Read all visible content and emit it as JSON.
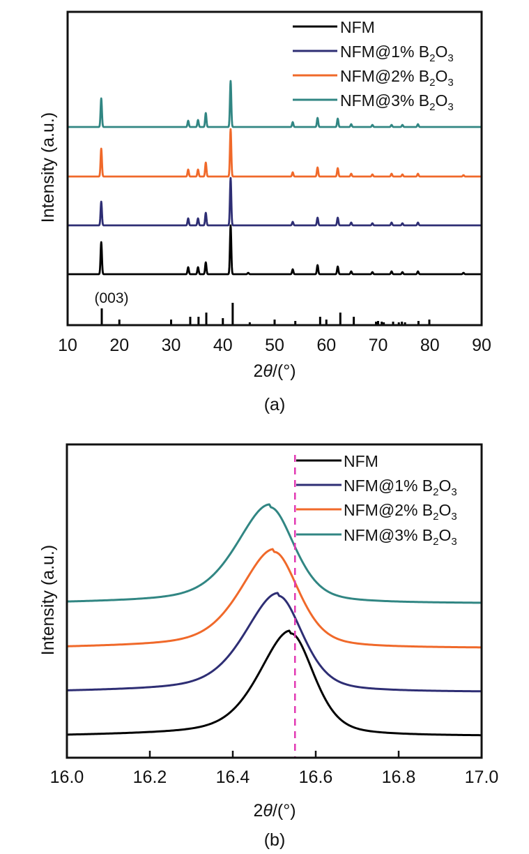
{
  "chart_data": [
    {
      "panel": "(a)",
      "type": "line",
      "title": "",
      "xlabel": "2θ/(°)",
      "ylabel": "Intensity (a.u.)",
      "xlim": [
        10,
        90
      ],
      "xticks": [
        10,
        20,
        30,
        40,
        50,
        60,
        70,
        80,
        90
      ],
      "grid": false,
      "legend_position": "top-right",
      "annotation": "(003)",
      "series": [
        {
          "name": "NFM",
          "color": "#000000",
          "peaks": [
            [
              16.5,
              46
            ],
            [
              33.3,
              10
            ],
            [
              35.2,
              10
            ],
            [
              36.7,
              17
            ],
            [
              41.5,
              70
            ],
            [
              44.9,
              2
            ],
            [
              53.5,
              7
            ],
            [
              58.3,
              13
            ],
            [
              62.2,
              11
            ],
            [
              64.8,
              4
            ],
            [
              68.9,
              3
            ],
            [
              72.6,
              4
            ],
            [
              74.7,
              3
            ],
            [
              77.7,
              4
            ],
            [
              86.5,
              2
            ]
          ]
        },
        {
          "name": "NFM@1% B₂O₃",
          "color": "#2e2e74",
          "peaks": [
            [
              16.5,
              34
            ],
            [
              33.3,
              10
            ],
            [
              35.2,
              10
            ],
            [
              36.7,
              18
            ],
            [
              41.5,
              68
            ],
            [
              53.5,
              5
            ],
            [
              58.3,
              11
            ],
            [
              62.2,
              11
            ],
            [
              64.8,
              4
            ],
            [
              68.9,
              3
            ],
            [
              72.6,
              4
            ],
            [
              74.7,
              3
            ],
            [
              77.7,
              4
            ]
          ]
        },
        {
          "name": "NFM@2% B₂O₃",
          "color": "#f0692a",
          "peaks": [
            [
              16.5,
              40
            ],
            [
              33.3,
              10
            ],
            [
              35.2,
              10
            ],
            [
              36.7,
              20
            ],
            [
              41.5,
              68
            ],
            [
              53.5,
              6
            ],
            [
              58.3,
              13
            ],
            [
              62.2,
              12
            ],
            [
              64.8,
              4
            ],
            [
              68.9,
              3
            ],
            [
              72.6,
              4
            ],
            [
              74.7,
              3
            ],
            [
              77.7,
              4
            ],
            [
              86.5,
              2
            ]
          ]
        },
        {
          "name": "NFM@3% B₂O₃",
          "color": "#318683",
          "peaks": [
            [
              16.5,
              41
            ],
            [
              33.3,
              9
            ],
            [
              35.2,
              10
            ],
            [
              36.7,
              20
            ],
            [
              41.5,
              66
            ],
            [
              53.5,
              7
            ],
            [
              58.3,
              13
            ],
            [
              62.2,
              12
            ],
            [
              64.8,
              4
            ],
            [
              68.9,
              3
            ],
            [
              72.6,
              3
            ],
            [
              74.7,
              3
            ],
            [
              77.7,
              4
            ]
          ]
        }
      ],
      "reference_sticks": {
        "name": "standard pattern",
        "color": "#000000",
        "sticks": [
          [
            16.6,
            24
          ],
          [
            20.0,
            8
          ],
          [
            30.0,
            8
          ],
          [
            33.7,
            12
          ],
          [
            35.3,
            12
          ],
          [
            36.8,
            18
          ],
          [
            40.0,
            10
          ],
          [
            41.9,
            32
          ],
          [
            45.2,
            4
          ],
          [
            50.0,
            8
          ],
          [
            54.0,
            6
          ],
          [
            58.8,
            12
          ],
          [
            60.0,
            8
          ],
          [
            62.7,
            18
          ],
          [
            65.3,
            12
          ],
          [
            69.6,
            5
          ],
          [
            70.0,
            6
          ],
          [
            70.7,
            5
          ],
          [
            71.1,
            4
          ],
          [
            72.9,
            5
          ],
          [
            74.0,
            4
          ],
          [
            74.6,
            5
          ],
          [
            75.2,
            4
          ],
          [
            77.8,
            6
          ],
          [
            79.9,
            8
          ]
        ]
      }
    },
    {
      "panel": "(b)",
      "type": "line",
      "title": "",
      "xlabel": "2θ/(°)",
      "ylabel": "Intensity (a.u.)",
      "xlim": [
        16.0,
        17.0
      ],
      "xticks": [
        "16.0",
        "16.2",
        "16.4",
        "16.6",
        "16.8",
        "17.0"
      ],
      "grid": false,
      "legend_position": "top-right",
      "reference_line": {
        "x": 16.55,
        "style": "dashed",
        "color": "#e23ab3"
      },
      "series": [
        {
          "name": "NFM",
          "color": "#000000",
          "peak_center": 16.54,
          "peak_height": 160,
          "width": 0.09
        },
        {
          "name": "NFM@1% B₂O₃",
          "color": "#2e2e74",
          "peak_center": 16.51,
          "peak_height": 150,
          "width": 0.095
        },
        {
          "name": "NFM@2% B₂O₃",
          "color": "#f0692a",
          "peak_center": 16.5,
          "peak_height": 150,
          "width": 0.095
        },
        {
          "name": "NFM@3% B₂O₃",
          "color": "#318683",
          "peak_center": 16.49,
          "peak_height": 150,
          "width": 0.095
        }
      ]
    }
  ],
  "panel_a": {
    "label": "(a)",
    "xlabel_prefix": "2",
    "xlabel_theta": "θ",
    "xlabel_suffix": "/(°)",
    "ylabel": "Intensity (a.u.)",
    "annotation": "(003)",
    "legend": [
      {
        "main": "NFM",
        "sub": ""
      },
      {
        "main": "NFM@1% B",
        "sub1": "2",
        "mid": "O",
        "sub2": "3"
      },
      {
        "main": "NFM@2% B",
        "sub1": "2",
        "mid": "O",
        "sub2": "3"
      },
      {
        "main": "NFM@3% B",
        "sub1": "2",
        "mid": "O",
        "sub2": "3"
      }
    ]
  },
  "panel_b": {
    "label": "(b)",
    "xlabel_prefix": "2",
    "xlabel_theta": "θ",
    "xlabel_suffix": "/(°)",
    "ylabel": "Intensity (a.u.)",
    "legend": [
      {
        "main": "NFM",
        "sub": ""
      },
      {
        "main": "NFM@1% B",
        "sub1": "2",
        "mid": "O",
        "sub2": "3"
      },
      {
        "main": "NFM@2% B",
        "sub1": "2",
        "mid": "O",
        "sub2": "3"
      },
      {
        "main": "NFM@3% B",
        "sub1": "2",
        "mid": "O",
        "sub2": "3"
      }
    ]
  }
}
